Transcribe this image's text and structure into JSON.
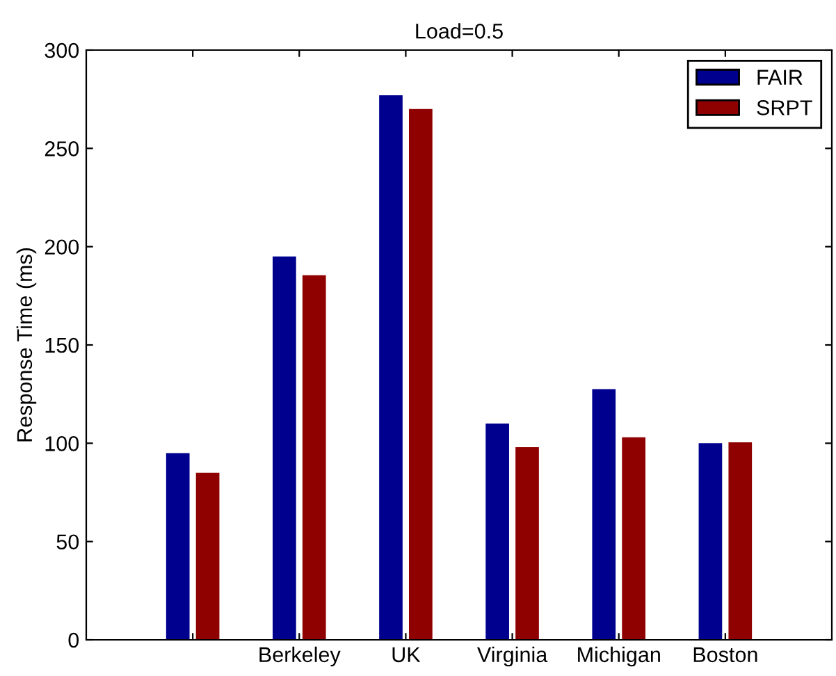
{
  "chart_data": {
    "type": "bar",
    "title": "Load=0.5",
    "ylabel": "Response Time (ms)",
    "categories": [
      null,
      "Berkeley",
      "UK",
      "Virginia",
      "Michigan",
      "Boston"
    ],
    "series": [
      {
        "name": "FAIR",
        "color": "#00008f",
        "values": [
          95,
          195,
          277,
          110,
          127.5,
          100
        ]
      },
      {
        "name": "SRPT",
        "color": "#8f0000",
        "values": [
          85,
          185.5,
          270,
          98,
          103,
          100.5
        ]
      }
    ],
    "ylim": [
      0,
      300
    ],
    "yticks": [
      0,
      50,
      100,
      150,
      200,
      250,
      300
    ],
    "grid": false,
    "legend": "top right"
  }
}
